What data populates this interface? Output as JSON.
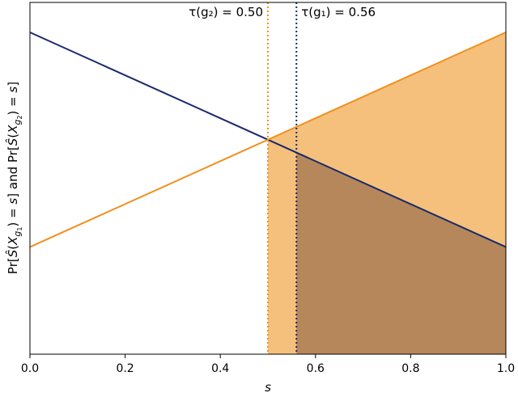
{
  "chart_data": {
    "type": "line",
    "xlabel": "s",
    "ylabel": "Pr[Ŝ(X_g1) = s]  and  Pr[Ŝ(X_g2) = s]",
    "xlim": [
      0.0,
      1.0
    ],
    "ylim": [
      0.0,
      1.0
    ],
    "xticks": [
      0.0,
      0.2,
      0.4,
      0.6,
      0.8,
      1.0
    ],
    "xtick_labels": [
      "0.0",
      "0.2",
      "0.4",
      "0.6",
      "0.8",
      "1.0"
    ],
    "yticks_shown": false,
    "series": [
      {
        "color": "#1a2a6c",
        "x": [
          0.0,
          1.0
        ],
        "y": [
          1.0,
          0.333
        ]
      },
      {
        "color": "#f0901e",
        "x": [
          0.0,
          1.0
        ],
        "y": [
          0.333,
          1.0
        ]
      }
    ],
    "thresholds": [
      {
        "label": "τ(g₂) = 0.50",
        "x": 0.5,
        "color": "#f0901e",
        "style": "dotted"
      },
      {
        "label": "τ(g₁) = 0.56",
        "x": 0.56,
        "color": "#1a2a6c",
        "style": "dotted"
      }
    ],
    "fills": [
      {
        "from": 0.5,
        "to": 1.0,
        "under": "orange-line",
        "color": "#f5c07c"
      },
      {
        "from": 0.56,
        "to": 1.0,
        "under": "navy-line",
        "color": "#b5875a"
      }
    ]
  }
}
